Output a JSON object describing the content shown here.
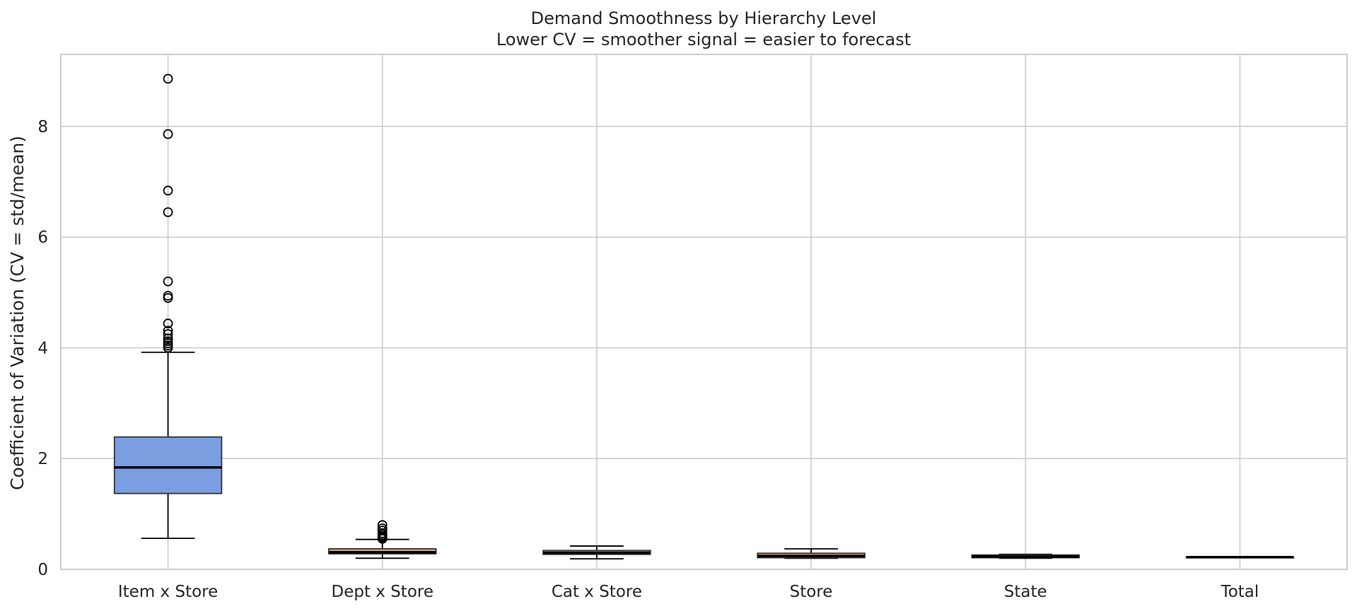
{
  "chart_data": {
    "type": "boxplot",
    "title": "Demand Smoothness by Hierarchy Level",
    "subtitle": "Lower CV = smoother signal = easier to forecast",
    "xlabel": "",
    "ylabel": "Coefficient of Variation (CV = std/mean)",
    "ylim": [
      0,
      9.3
    ],
    "yticks": [
      0,
      2,
      4,
      6,
      8
    ],
    "grid": true,
    "categories": [
      "Item x Store",
      "Dept x Store",
      "Cat x Store",
      "Store",
      "State",
      "Total"
    ],
    "series": [
      {
        "whisker_low": 0.56,
        "q1": 1.37,
        "median": 1.84,
        "q3": 2.39,
        "whisker_high": 3.92,
        "outliers": [
          8.86,
          7.86,
          6.84,
          6.45,
          5.2,
          4.94,
          4.9,
          4.44,
          4.31,
          4.25,
          4.17,
          4.12,
          4.08,
          4.04,
          4.0
        ]
      },
      {
        "whisker_low": 0.2,
        "q1": 0.28,
        "median": 0.31,
        "q3": 0.37,
        "whisker_high": 0.54,
        "outliers": [
          0.8,
          0.74,
          0.7,
          0.65,
          0.62,
          0.59,
          0.57,
          0.55
        ]
      },
      {
        "whisker_low": 0.19,
        "q1": 0.27,
        "median": 0.3,
        "q3": 0.34,
        "whisker_high": 0.42,
        "outliers": []
      },
      {
        "whisker_low": 0.2,
        "q1": 0.21,
        "median": 0.24,
        "q3": 0.29,
        "whisker_high": 0.37,
        "outliers": []
      },
      {
        "whisker_low": 0.2,
        "q1": 0.21,
        "median": 0.23,
        "q3": 0.26,
        "whisker_high": 0.27,
        "outliers": []
      },
      {
        "whisker_low": 0.22,
        "q1": 0.22,
        "median": 0.22,
        "q3": 0.22,
        "whisker_high": 0.22,
        "outliers": []
      }
    ],
    "colors": {
      "box_first": "#7b9ee0",
      "box_other": "#e8a27c",
      "median": "#000000",
      "grid": "#cccccc",
      "frame": "#cccccc",
      "text": "#262626"
    }
  }
}
